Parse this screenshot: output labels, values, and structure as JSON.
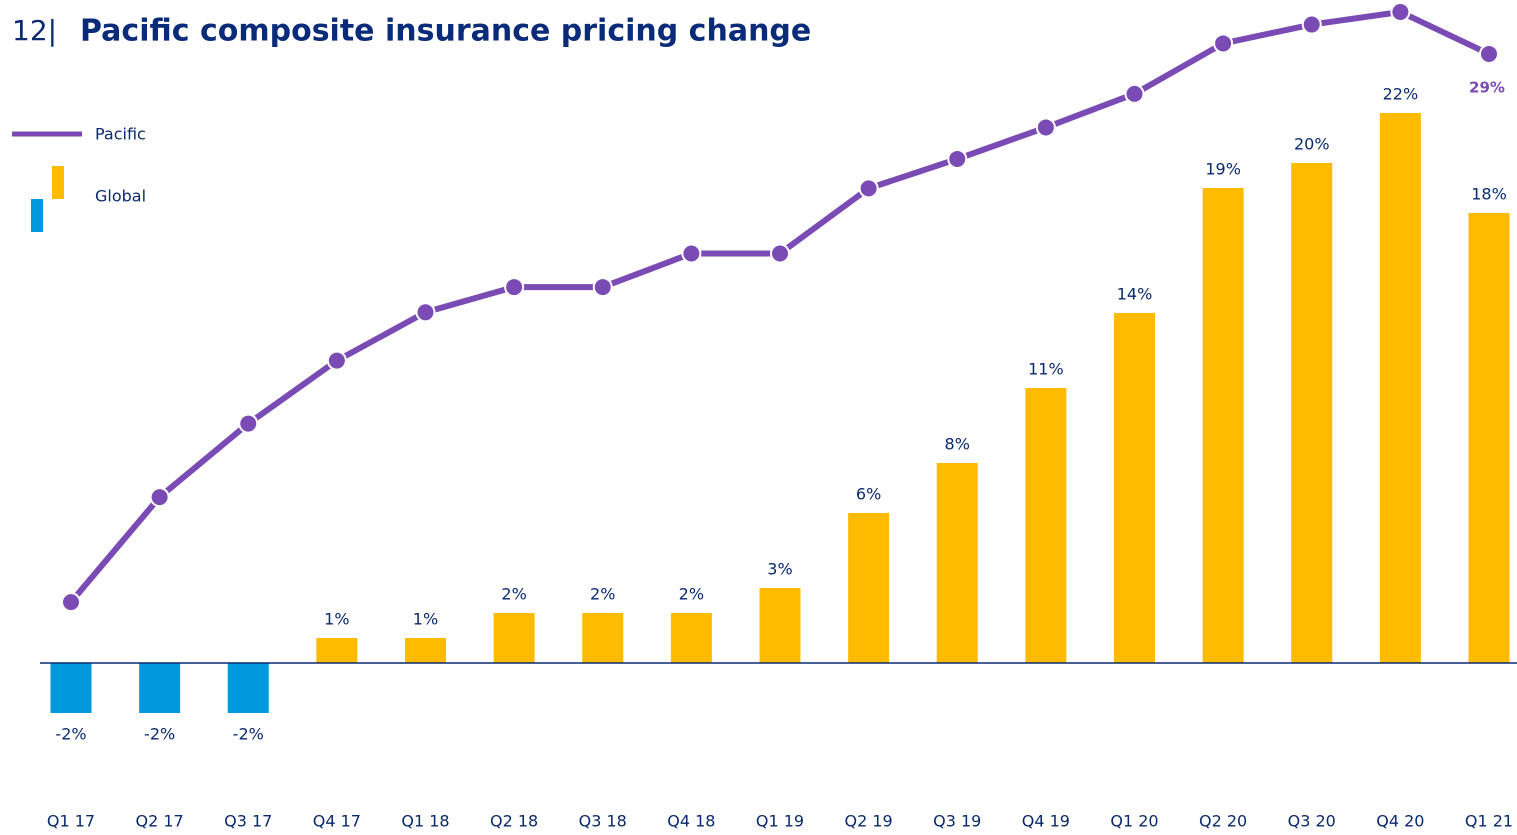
{
  "chart_data": {
    "type": "bar",
    "page_number": "12|",
    "title": "Pacific composite insurance pricing change",
    "categories": [
      "Q1 17",
      "Q2 17",
      "Q3 17",
      "Q4 17",
      "Q1 18",
      "Q2 18",
      "Q3 18",
      "Q4 18",
      "Q1 19",
      "Q2 19",
      "Q3 19",
      "Q4 19",
      "Q1 20",
      "Q2 20",
      "Q3 20",
      "Q4 20",
      "Q1 21"
    ],
    "ylim": [
      -4,
      26
    ],
    "y2lim": [
      -4.76,
      30.95
    ],
    "series": [
      {
        "name": "Pacific",
        "type": "line",
        "axis": "y2",
        "color": "#7b4bb5",
        "values": [
          2.9,
          7.9,
          11.4,
          14.4,
          16.7,
          17.9,
          17.9,
          19.5,
          19.5,
          22.6,
          24,
          25.5,
          27.1,
          29.5,
          30.4,
          31,
          29
        ],
        "value_labels": [
          null,
          null,
          null,
          null,
          null,
          null,
          null,
          null,
          null,
          null,
          null,
          null,
          null,
          null,
          null,
          null,
          "29%"
        ]
      },
      {
        "name": "Global",
        "type": "bar",
        "color": "#ffbb00",
        "negative_color": "#0099dd",
        "values": [
          -2,
          -2,
          -2,
          1,
          1,
          2,
          2,
          2,
          3,
          6,
          8,
          11,
          14,
          19,
          20,
          22,
          18
        ],
        "value_labels": [
          "-2%",
          "-2%",
          "-2%",
          "1%",
          "1%",
          "2%",
          "2%",
          "2%",
          "3%",
          "6%",
          "8%",
          "11%",
          "14%",
          "19%",
          "20%",
          "22%",
          "18%"
        ]
      }
    ]
  }
}
